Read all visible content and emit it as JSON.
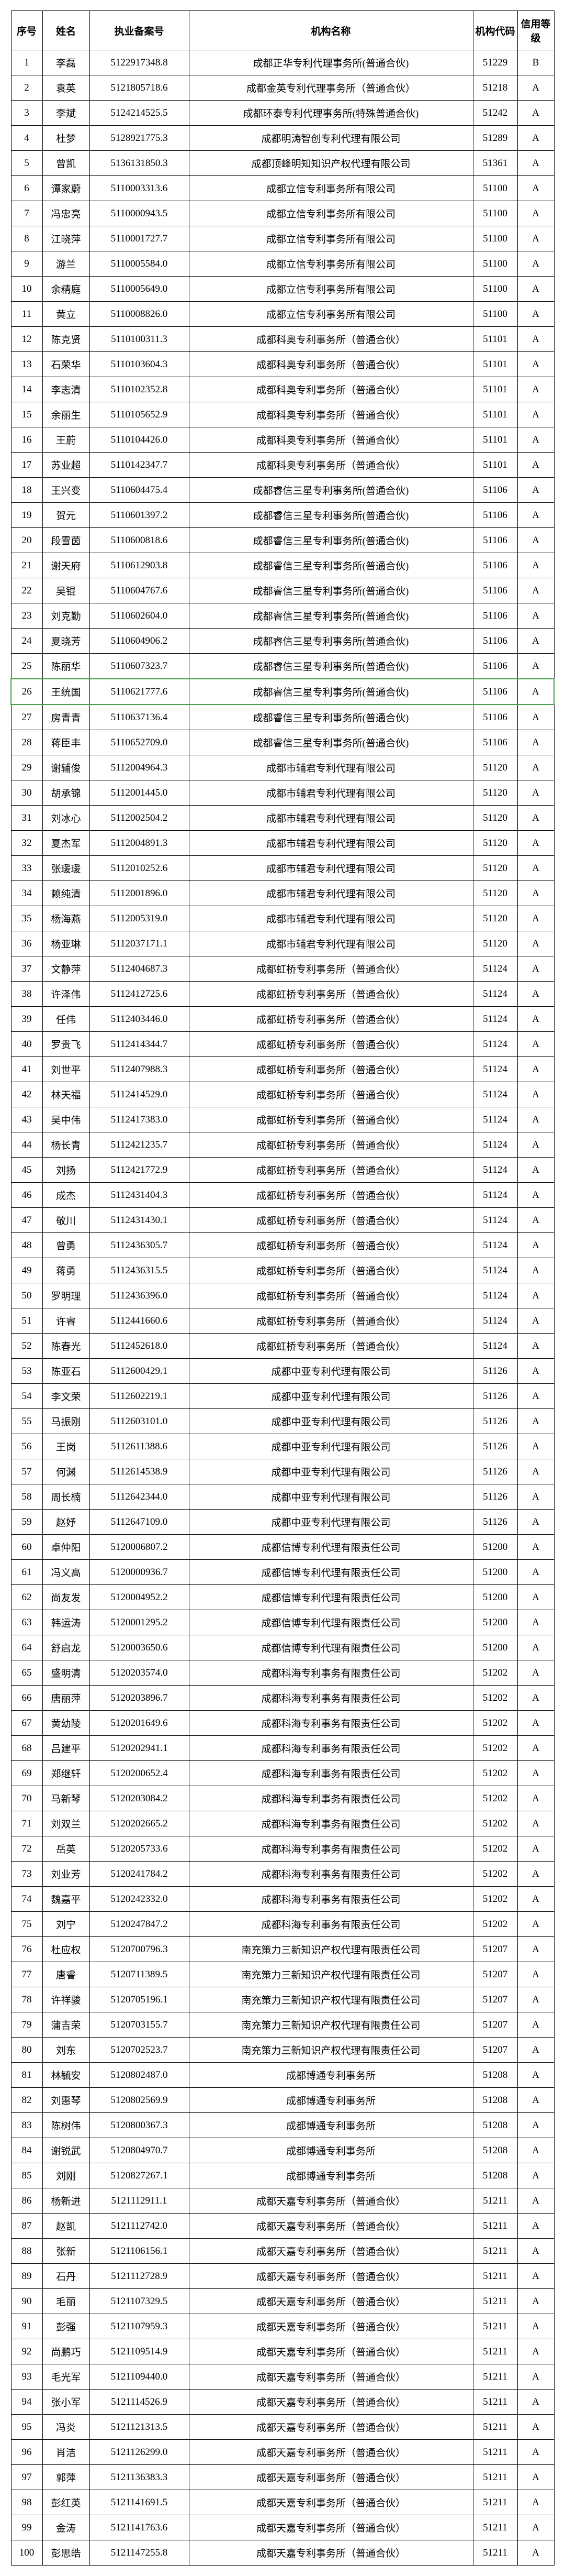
{
  "headers": {
    "seq": "序号",
    "name": "姓名",
    "license": "执业备案号",
    "org": "机构名称",
    "code": "机构代码",
    "grade": "信用等级"
  },
  "rows": [
    {
      "seq": "1",
      "name": "李磊",
      "license": "5122917348.8",
      "org": "成都正华专利代理事务所(普通合伙)",
      "code": "51229",
      "grade": "B"
    },
    {
      "seq": "2",
      "name": "袁英",
      "license": "5121805718.6",
      "org": "成都金英专利代理事务所（普通合伙）",
      "code": "51218",
      "grade": "A"
    },
    {
      "seq": "3",
      "name": "李斌",
      "license": "5124214525.5",
      "org": "成都环泰专利代理事务所(特殊普通合伙)",
      "code": "51242",
      "grade": "A"
    },
    {
      "seq": "4",
      "name": "杜梦",
      "license": "5128921775.3",
      "org": "成都明涛智创专利代理有限公司",
      "code": "51289",
      "grade": "A"
    },
    {
      "seq": "5",
      "name": "曾凯",
      "license": "5136131850.3",
      "org": "成都顶峰明知知识产权代理有限公司",
      "code": "51361",
      "grade": "A"
    },
    {
      "seq": "6",
      "name": "谭家蔚",
      "license": "5110003313.6",
      "org": "成都立信专利事务所有限公司",
      "code": "51100",
      "grade": "A"
    },
    {
      "seq": "7",
      "name": "冯忠亮",
      "license": "5110000943.5",
      "org": "成都立信专利事务所有限公司",
      "code": "51100",
      "grade": "A"
    },
    {
      "seq": "8",
      "name": "江晓萍",
      "license": "5110001727.7",
      "org": "成都立信专利事务所有限公司",
      "code": "51100",
      "grade": "A"
    },
    {
      "seq": "9",
      "name": "游兰",
      "license": "5110005584.0",
      "org": "成都立信专利事务所有限公司",
      "code": "51100",
      "grade": "A"
    },
    {
      "seq": "10",
      "name": "余精庭",
      "license": "5110005649.0",
      "org": "成都立信专利事务所有限公司",
      "code": "51100",
      "grade": "A"
    },
    {
      "seq": "11",
      "name": "黄立",
      "license": "5110008826.0",
      "org": "成都立信专利事务所有限公司",
      "code": "51100",
      "grade": "A"
    },
    {
      "seq": "12",
      "name": "陈克贤",
      "license": "5110100311.3",
      "org": "成都科奥专利事务所（普通合伙）",
      "code": "51101",
      "grade": "A"
    },
    {
      "seq": "13",
      "name": "石荣华",
      "license": "5110103604.3",
      "org": "成都科奥专利事务所（普通合伙）",
      "code": "51101",
      "grade": "A"
    },
    {
      "seq": "14",
      "name": "李志清",
      "license": "5110102352.8",
      "org": "成都科奥专利事务所（普通合伙）",
      "code": "51101",
      "grade": "A"
    },
    {
      "seq": "15",
      "name": "余丽生",
      "license": "5110105652.9",
      "org": "成都科奥专利事务所（普通合伙）",
      "code": "51101",
      "grade": "A"
    },
    {
      "seq": "16",
      "name": "王蔚",
      "license": "5110104426.0",
      "org": "成都科奥专利事务所（普通合伙）",
      "code": "51101",
      "grade": "A"
    },
    {
      "seq": "17",
      "name": "苏业超",
      "license": "5110142347.7",
      "org": "成都科奥专利事务所（普通合伙）",
      "code": "51101",
      "grade": "A"
    },
    {
      "seq": "18",
      "name": "王兴变",
      "license": "5110604475.4",
      "org": "成都睿信三星专利事务所(普通合伙)",
      "code": "51106",
      "grade": "A"
    },
    {
      "seq": "19",
      "name": "贺元",
      "license": "5110601397.2",
      "org": "成都睿信三星专利事务所(普通合伙)",
      "code": "51106",
      "grade": "A"
    },
    {
      "seq": "20",
      "name": "段雪茵",
      "license": "5110600818.6",
      "org": "成都睿信三星专利事务所(普通合伙)",
      "code": "51106",
      "grade": "A"
    },
    {
      "seq": "21",
      "name": "谢天府",
      "license": "5110612903.8",
      "org": "成都睿信三星专利事务所(普通合伙)",
      "code": "51106",
      "grade": "A"
    },
    {
      "seq": "22",
      "name": "吴锟",
      "license": "5110604767.6",
      "org": "成都睿信三星专利事务所(普通合伙)",
      "code": "51106",
      "grade": "A"
    },
    {
      "seq": "23",
      "name": "刘克勤",
      "license": "5110602604.0",
      "org": "成都睿信三星专利事务所(普通合伙)",
      "code": "51106",
      "grade": "A"
    },
    {
      "seq": "24",
      "name": "夏晓芳",
      "license": "5110604906.2",
      "org": "成都睿信三星专利事务所(普通合伙)",
      "code": "51106",
      "grade": "A"
    },
    {
      "seq": "25",
      "name": "陈丽华",
      "license": "5110607323.7",
      "org": "成都睿信三星专利事务所(普通合伙)",
      "code": "51106",
      "grade": "A"
    },
    {
      "seq": "26",
      "name": "王统国",
      "license": "5110621777.6",
      "org": "成都睿信三星专利事务所(普通合伙)",
      "code": "51106",
      "grade": "A",
      "hl": true
    },
    {
      "seq": "27",
      "name": "房青青",
      "license": "5110637136.4",
      "org": "成都睿信三星专利事务所(普通合伙)",
      "code": "51106",
      "grade": "A"
    },
    {
      "seq": "28",
      "name": "蒋臣丰",
      "license": "5110652709.0",
      "org": "成都睿信三星专利事务所(普通合伙)",
      "code": "51106",
      "grade": "A"
    },
    {
      "seq": "29",
      "name": "谢辅俊",
      "license": "5112004964.3",
      "org": "成都市辅君专利代理有限公司",
      "code": "51120",
      "grade": "A"
    },
    {
      "seq": "30",
      "name": "胡承锦",
      "license": "5112001445.0",
      "org": "成都市辅君专利代理有限公司",
      "code": "51120",
      "grade": "A"
    },
    {
      "seq": "31",
      "name": "刘冰心",
      "license": "5112002504.2",
      "org": "成都市辅君专利代理有限公司",
      "code": "51120",
      "grade": "A"
    },
    {
      "seq": "32",
      "name": "夏杰军",
      "license": "5112004891.3",
      "org": "成都市辅君专利代理有限公司",
      "code": "51120",
      "grade": "A"
    },
    {
      "seq": "33",
      "name": "张瑗瑗",
      "license": "5112010252.6",
      "org": "成都市辅君专利代理有限公司",
      "code": "51120",
      "grade": "A"
    },
    {
      "seq": "34",
      "name": "赖纯清",
      "license": "5112001896.0",
      "org": "成都市辅君专利代理有限公司",
      "code": "51120",
      "grade": "A"
    },
    {
      "seq": "35",
      "name": "杨海燕",
      "license": "5112005319.0",
      "org": "成都市辅君专利代理有限公司",
      "code": "51120",
      "grade": "A"
    },
    {
      "seq": "36",
      "name": "杨亚琳",
      "license": "5112037171.1",
      "org": "成都市辅君专利代理有限公司",
      "code": "51120",
      "grade": "A"
    },
    {
      "seq": "37",
      "name": "文静萍",
      "license": "5112404687.3",
      "org": "成都虹桥专利事务所（普通合伙）",
      "code": "51124",
      "grade": "A"
    },
    {
      "seq": "38",
      "name": "许泽伟",
      "license": "5112412725.6",
      "org": "成都虹桥专利事务所（普通合伙）",
      "code": "51124",
      "grade": "A"
    },
    {
      "seq": "39",
      "name": "任伟",
      "license": "5112403446.0",
      "org": "成都虹桥专利事务所（普通合伙）",
      "code": "51124",
      "grade": "A"
    },
    {
      "seq": "40",
      "name": "罗贵飞",
      "license": "5112414344.7",
      "org": "成都虹桥专利事务所（普通合伙）",
      "code": "51124",
      "grade": "A"
    },
    {
      "seq": "41",
      "name": "刘世平",
      "license": "5112407988.3",
      "org": "成都虹桥专利事务所（普通合伙）",
      "code": "51124",
      "grade": "A"
    },
    {
      "seq": "42",
      "name": "林天福",
      "license": "5112414529.0",
      "org": "成都虹桥专利事务所（普通合伙）",
      "code": "51124",
      "grade": "A"
    },
    {
      "seq": "43",
      "name": "吴中伟",
      "license": "5112417383.0",
      "org": "成都虹桥专利事务所（普通合伙）",
      "code": "51124",
      "grade": "A"
    },
    {
      "seq": "44",
      "name": "杨长青",
      "license": "5112421235.7",
      "org": "成都虹桥专利事务所（普通合伙）",
      "code": "51124",
      "grade": "A"
    },
    {
      "seq": "45",
      "name": "刘扬",
      "license": "5112421772.9",
      "org": "成都虹桥专利事务所（普通合伙）",
      "code": "51124",
      "grade": "A"
    },
    {
      "seq": "46",
      "name": "成杰",
      "license": "5112431404.3",
      "org": "成都虹桥专利事务所（普通合伙）",
      "code": "51124",
      "grade": "A"
    },
    {
      "seq": "47",
      "name": "敬川",
      "license": "5112431430.1",
      "org": "成都虹桥专利事务所（普通合伙）",
      "code": "51124",
      "grade": "A"
    },
    {
      "seq": "48",
      "name": "曾勇",
      "license": "5112436305.7",
      "org": "成都虹桥专利事务所（普通合伙）",
      "code": "51124",
      "grade": "A"
    },
    {
      "seq": "49",
      "name": "蒋勇",
      "license": "5112436315.5",
      "org": "成都虹桥专利事务所（普通合伙）",
      "code": "51124",
      "grade": "A"
    },
    {
      "seq": "50",
      "name": "罗明理",
      "license": "5112436396.0",
      "org": "成都虹桥专利事务所（普通合伙）",
      "code": "51124",
      "grade": "A"
    },
    {
      "seq": "51",
      "name": "许睿",
      "license": "5112441660.6",
      "org": "成都虹桥专利事务所（普通合伙）",
      "code": "51124",
      "grade": "A"
    },
    {
      "seq": "52",
      "name": "陈春光",
      "license": "5112452618.0",
      "org": "成都虹桥专利事务所（普通合伙）",
      "code": "51124",
      "grade": "A"
    },
    {
      "seq": "53",
      "name": "陈亚石",
      "license": "5112600429.1",
      "org": "成都中亚专利代理有限公司",
      "code": "51126",
      "grade": "A"
    },
    {
      "seq": "54",
      "name": "李文荣",
      "license": "5112602219.1",
      "org": "成都中亚专利代理有限公司",
      "code": "51126",
      "grade": "A"
    },
    {
      "seq": "55",
      "name": "马振刚",
      "license": "5112603101.0",
      "org": "成都中亚专利代理有限公司",
      "code": "51126",
      "grade": "A"
    },
    {
      "seq": "56",
      "name": "王岗",
      "license": "5112611388.6",
      "org": "成都中亚专利代理有限公司",
      "code": "51126",
      "grade": "A"
    },
    {
      "seq": "57",
      "name": "何渊",
      "license": "5112614538.9",
      "org": "成都中亚专利代理有限公司",
      "code": "51126",
      "grade": "A"
    },
    {
      "seq": "58",
      "name": "周长楠",
      "license": "5112642344.0",
      "org": "成都中亚专利代理有限公司",
      "code": "51126",
      "grade": "A"
    },
    {
      "seq": "59",
      "name": "赵妤",
      "license": "5112647109.0",
      "org": "成都中亚专利代理有限公司",
      "code": "51126",
      "grade": "A"
    },
    {
      "seq": "60",
      "name": "卓仲阳",
      "license": "5120006807.2",
      "org": "成都信博专利代理有限责任公司",
      "code": "51200",
      "grade": "A"
    },
    {
      "seq": "61",
      "name": "冯义高",
      "license": "5120000936.7",
      "org": "成都信博专利代理有限责任公司",
      "code": "51200",
      "grade": "A"
    },
    {
      "seq": "62",
      "name": "尚友发",
      "license": "5120004952.2",
      "org": "成都信博专利代理有限责任公司",
      "code": "51200",
      "grade": "A"
    },
    {
      "seq": "63",
      "name": "韩运涛",
      "license": "5120001295.2",
      "org": "成都信博专利代理有限责任公司",
      "code": "51200",
      "grade": "A"
    },
    {
      "seq": "64",
      "name": "舒启龙",
      "license": "5120003650.6",
      "org": "成都信博专利代理有限责任公司",
      "code": "51200",
      "grade": "A"
    },
    {
      "seq": "65",
      "name": "盛明清",
      "license": "5120203574.0",
      "org": "成都科海专利事务有限责任公司",
      "code": "51202",
      "grade": "A"
    },
    {
      "seq": "66",
      "name": "唐丽萍",
      "license": "5120203896.7",
      "org": "成都科海专利事务有限责任公司",
      "code": "51202",
      "grade": "A"
    },
    {
      "seq": "67",
      "name": "黄幼陵",
      "license": "5120201649.6",
      "org": "成都科海专利事务有限责任公司",
      "code": "51202",
      "grade": "A"
    },
    {
      "seq": "68",
      "name": "吕建平",
      "license": "5120202941.1",
      "org": "成都科海专利事务有限责任公司",
      "code": "51202",
      "grade": "A"
    },
    {
      "seq": "69",
      "name": "郑继轩",
      "license": "5120200652.4",
      "org": "成都科海专利事务有限责任公司",
      "code": "51202",
      "grade": "A"
    },
    {
      "seq": "70",
      "name": "马新琴",
      "license": "5120203084.2",
      "org": "成都科海专利事务有限责任公司",
      "code": "51202",
      "grade": "A"
    },
    {
      "seq": "71",
      "name": "刘双兰",
      "license": "5120202665.2",
      "org": "成都科海专利事务有限责任公司",
      "code": "51202",
      "grade": "A"
    },
    {
      "seq": "72",
      "name": "岳英",
      "license": "5120205733.6",
      "org": "成都科海专利事务有限责任公司",
      "code": "51202",
      "grade": "A"
    },
    {
      "seq": "73",
      "name": "刘业芳",
      "license": "5120241784.2",
      "org": "成都科海专利事务有限责任公司",
      "code": "51202",
      "grade": "A"
    },
    {
      "seq": "74",
      "name": "魏嘉平",
      "license": "5120242332.0",
      "org": "成都科海专利事务有限责任公司",
      "code": "51202",
      "grade": "A"
    },
    {
      "seq": "75",
      "name": "刘宁",
      "license": "5120247847.2",
      "org": "成都科海专利事务有限责任公司",
      "code": "51202",
      "grade": "A"
    },
    {
      "seq": "76",
      "name": "杜应权",
      "license": "5120700796.3",
      "org": "南充策力三新知识产权代理有限责任公司",
      "code": "51207",
      "grade": "A"
    },
    {
      "seq": "77",
      "name": "唐睿",
      "license": "5120711389.5",
      "org": "南充策力三新知识产权代理有限责任公司",
      "code": "51207",
      "grade": "A"
    },
    {
      "seq": "78",
      "name": "许祥骏",
      "license": "5120705196.1",
      "org": "南充策力三新知识产权代理有限责任公司",
      "code": "51207",
      "grade": "A"
    },
    {
      "seq": "79",
      "name": "蒲吉荣",
      "license": "5120703155.7",
      "org": "南充策力三新知识产权代理有限责任公司",
      "code": "51207",
      "grade": "A"
    },
    {
      "seq": "80",
      "name": "刘东",
      "license": "5120702523.7",
      "org": "南充策力三新知识产权代理有限责任公司",
      "code": "51207",
      "grade": "A"
    },
    {
      "seq": "81",
      "name": "林毓安",
      "license": "5120802487.0",
      "org": "成都博通专利事务所",
      "code": "51208",
      "grade": "A"
    },
    {
      "seq": "82",
      "name": "刘惠琴",
      "license": "5120802569.9",
      "org": "成都博通专利事务所",
      "code": "51208",
      "grade": "A"
    },
    {
      "seq": "83",
      "name": "陈树伟",
      "license": "5120800367.3",
      "org": "成都博通专利事务所",
      "code": "51208",
      "grade": "A"
    },
    {
      "seq": "84",
      "name": "谢锐武",
      "license": "5120804970.7",
      "org": "成都博通专利事务所",
      "code": "51208",
      "grade": "A"
    },
    {
      "seq": "85",
      "name": "刘刚",
      "license": "5120827267.1",
      "org": "成都博通专利事务所",
      "code": "51208",
      "grade": "A"
    },
    {
      "seq": "86",
      "name": "杨新进",
      "license": "5121112911.1",
      "org": "成都天嘉专利事务所（普通合伙）",
      "code": "51211",
      "grade": "A"
    },
    {
      "seq": "87",
      "name": "赵凯",
      "license": "5121112742.0",
      "org": "成都天嘉专利事务所（普通合伙）",
      "code": "51211",
      "grade": "A"
    },
    {
      "seq": "88",
      "name": "张新",
      "license": "5121106156.1",
      "org": "成都天嘉专利事务所（普通合伙）",
      "code": "51211",
      "grade": "A"
    },
    {
      "seq": "89",
      "name": "石丹",
      "license": "5121112728.9",
      "org": "成都天嘉专利事务所（普通合伙）",
      "code": "51211",
      "grade": "A"
    },
    {
      "seq": "90",
      "name": "毛丽",
      "license": "5121107329.5",
      "org": "成都天嘉专利事务所（普通合伙）",
      "code": "51211",
      "grade": "A"
    },
    {
      "seq": "91",
      "name": "彭强",
      "license": "5121107959.3",
      "org": "成都天嘉专利事务所（普通合伙）",
      "code": "51211",
      "grade": "A"
    },
    {
      "seq": "92",
      "name": "尚鹏巧",
      "license": "5121109514.9",
      "org": "成都天嘉专利事务所（普通合伙）",
      "code": "51211",
      "grade": "A"
    },
    {
      "seq": "93",
      "name": "毛光军",
      "license": "5121109440.0",
      "org": "成都天嘉专利事务所（普通合伙）",
      "code": "51211",
      "grade": "A"
    },
    {
      "seq": "94",
      "name": "张小军",
      "license": "5121114526.9",
      "org": "成都天嘉专利事务所（普通合伙）",
      "code": "51211",
      "grade": "A"
    },
    {
      "seq": "95",
      "name": "冯炎",
      "license": "5121121313.5",
      "org": "成都天嘉专利事务所（普通合伙）",
      "code": "51211",
      "grade": "A"
    },
    {
      "seq": "96",
      "name": "肖洁",
      "license": "5121126299.0",
      "org": "成都天嘉专利事务所（普通合伙）",
      "code": "51211",
      "grade": "A"
    },
    {
      "seq": "97",
      "name": "郭萍",
      "license": "5121136383.3",
      "org": "成都天嘉专利事务所（普通合伙）",
      "code": "51211",
      "grade": "A"
    },
    {
      "seq": "98",
      "name": "彭红英",
      "license": "5121141691.5",
      "org": "成都天嘉专利事务所（普通合伙）",
      "code": "51211",
      "grade": "A"
    },
    {
      "seq": "99",
      "name": "金涛",
      "license": "5121141763.6",
      "org": "成都天嘉专利事务所（普通合伙）",
      "code": "51211",
      "grade": "A"
    },
    {
      "seq": "100",
      "name": "彭思皓",
      "license": "5121147255.8",
      "org": "成都天嘉专利事务所（普通合伙）",
      "code": "51211",
      "grade": "A"
    }
  ]
}
